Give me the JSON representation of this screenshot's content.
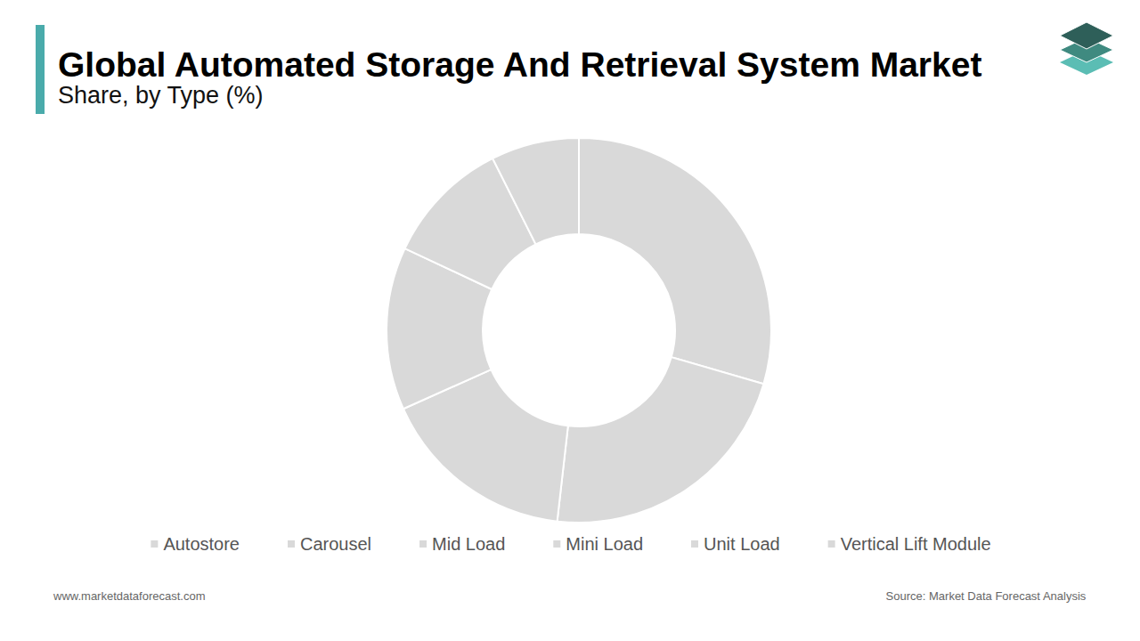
{
  "chart_data": {
    "type": "pie",
    "title": "Global Automated Storage And Retrieval System Market",
    "subtitle": "Share, by Type (%)",
    "categories": [
      "Autostore",
      "Carousel",
      "Mid Load",
      "Mini Load",
      "Unit Load",
      "Vertical Lift Module"
    ],
    "values": [
      29.5,
      22.3,
      16.5,
      13.7,
      10.6,
      7.4
    ],
    "colors": [
      "#d9d9d9",
      "#d9d9d9",
      "#d9d9d9",
      "#d9d9d9",
      "#d9d9d9",
      "#d9d9d9"
    ],
    "legend": "bottom",
    "data_labels": false,
    "website": "www.marketdataforecast.com",
    "source": "Source: Market Data Forecast Analysis"
  }
}
